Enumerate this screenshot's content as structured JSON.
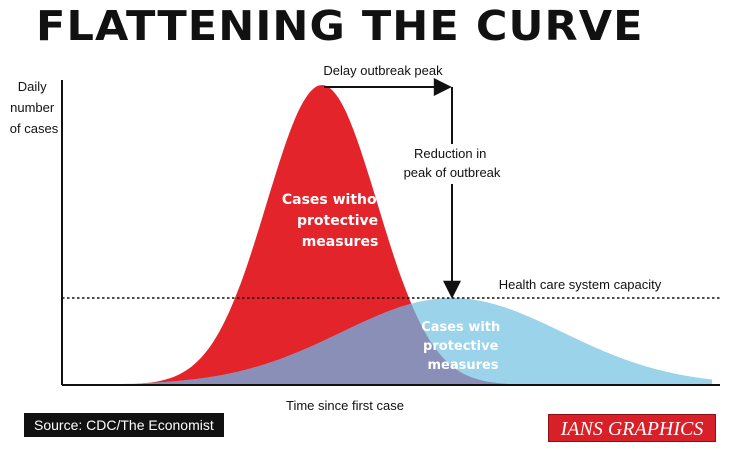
{
  "title": "FLATTENING THE CURVE",
  "source": "Source: CDC/The Economist",
  "credit": "IANS GRAPHICS",
  "colors": {
    "without_measures": "#e3242b",
    "with_measures_overlap": "#8a8fb8",
    "with_measures": "#9bd3ea",
    "axis": "#111111",
    "text": "#111111"
  },
  "chart_data": {
    "type": "area",
    "ylabel": "Daily number of cases",
    "ylabel_lines": [
      "Daily",
      "number",
      "of cases"
    ],
    "xlabel": "Time since first case",
    "grid": false,
    "series": [
      {
        "name": "Cases without protective measures",
        "label_lines": [
          "Cases without",
          "protective",
          "measures"
        ],
        "color": "#e3242b",
        "peak_x": 0.4,
        "peak_y": 1.0,
        "spread": 0.085
      },
      {
        "name": "Cases with protective measures",
        "label_lines": [
          "Cases with",
          "protective",
          "measures"
        ],
        "color": "#9bd3ea",
        "peak_x": 0.6,
        "peak_y": 0.29,
        "spread": 0.17
      }
    ],
    "capacity_line": {
      "label": "Health care system capacity",
      "y": 0.29
    },
    "annotations": [
      {
        "id": "delay",
        "text": "Delay outbreak peak"
      },
      {
        "id": "reduction",
        "text_lines": [
          "Reduction in",
          "peak of outbreak"
        ]
      }
    ]
  }
}
